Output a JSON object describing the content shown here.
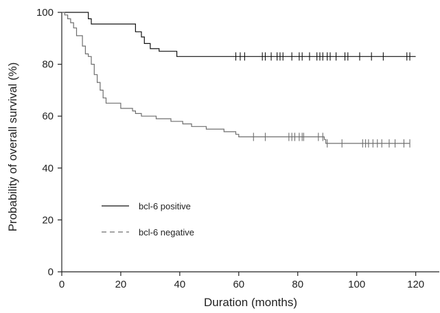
{
  "chart_data": {
    "type": "line",
    "step": true,
    "title": "",
    "xlabel": "Duration (months)",
    "ylabel": "Probability of overall survival (%)",
    "xlim": [
      0,
      128
    ],
    "ylim": [
      0,
      100
    ],
    "xticks": [
      0,
      20,
      40,
      60,
      80,
      100,
      120
    ],
    "yticks": [
      0,
      20,
      40,
      60,
      80,
      100
    ],
    "grid": false,
    "legend": {
      "position": "bottom-left"
    },
    "series": [
      {
        "name": "bcl-6 positive",
        "color": "#111111",
        "dash": "solid",
        "steps": [
          [
            0,
            100
          ],
          [
            7,
            100
          ],
          [
            9,
            97.5
          ],
          [
            10,
            95.5
          ],
          [
            24,
            95.5
          ],
          [
            25,
            92.5
          ],
          [
            27,
            90.5
          ],
          [
            28,
            88
          ],
          [
            30,
            86
          ],
          [
            33,
            85
          ],
          [
            39,
            83
          ],
          [
            120,
            83
          ]
        ],
        "censored": [
          59,
          60.5,
          62,
          68,
          69,
          71,
          73,
          74,
          75,
          78,
          80.5,
          81.5,
          84,
          86.5,
          87.5,
          88.5,
          90,
          91,
          93,
          96,
          97,
          101,
          105,
          109,
          117,
          118
        ]
      },
      {
        "name": "bcl-6 negative",
        "color": "#6e6e6e",
        "dash": "dashed",
        "steps": [
          [
            0,
            100
          ],
          [
            1,
            99
          ],
          [
            2,
            97.5
          ],
          [
            3,
            96
          ],
          [
            4,
            94
          ],
          [
            5,
            91
          ],
          [
            7,
            87
          ],
          [
            8,
            84
          ],
          [
            9,
            83
          ],
          [
            10,
            80
          ],
          [
            11,
            76
          ],
          [
            12,
            73
          ],
          [
            13,
            70
          ],
          [
            14,
            67
          ],
          [
            15,
            65
          ],
          [
            20,
            63
          ],
          [
            24,
            62
          ],
          [
            25,
            61
          ],
          [
            27,
            60
          ],
          [
            32,
            59
          ],
          [
            37,
            58
          ],
          [
            41,
            57
          ],
          [
            44,
            56
          ],
          [
            49,
            55
          ],
          [
            55,
            54
          ],
          [
            59,
            53
          ],
          [
            60,
            52
          ],
          [
            65,
            52
          ],
          [
            88,
            52
          ],
          [
            89,
            51
          ],
          [
            89.5,
            49.5
          ],
          [
            118,
            49.5
          ]
        ],
        "censored": [
          65,
          69,
          77,
          78,
          79,
          80.5,
          81.5,
          82,
          87,
          88.5,
          90,
          95,
          102,
          103,
          104,
          105.5,
          107,
          108.5,
          111,
          113,
          116,
          118
        ]
      }
    ]
  }
}
